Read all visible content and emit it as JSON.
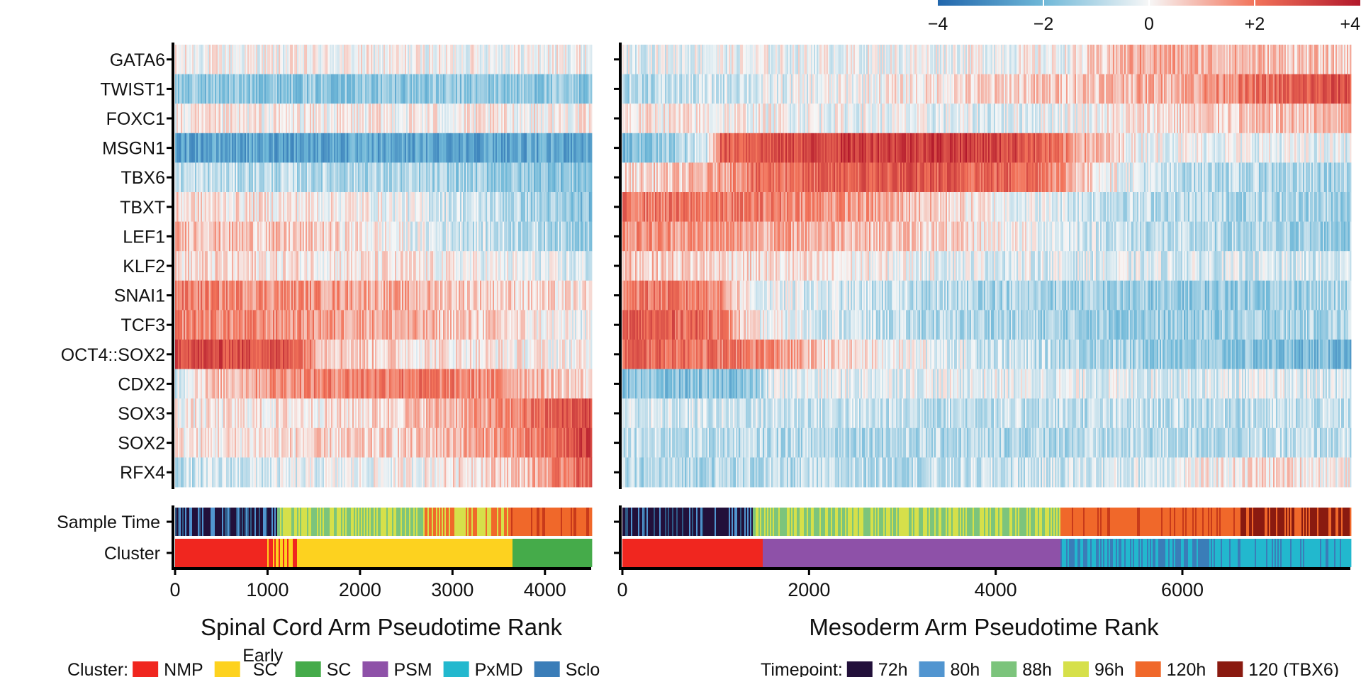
{
  "chart_data": [
    {
      "type": "heatmap",
      "title": "",
      "xlabel": "Spinal Cord Arm Pseudotime Rank",
      "xlim": [
        0,
        4500
      ],
      "xticks": [
        0,
        1000,
        2000,
        3000,
        4000
      ],
      "xtick_labels": [
        "0",
        "1000",
        "2000",
        "3000",
        "4000"
      ],
      "genes": [
        "GATA6",
        "TWIST1",
        "FOXC1",
        "MSGN1",
        "TBX6",
        "TBXT",
        "LEF1",
        "KLF2",
        "SNAI1",
        "TCF3",
        "OCT4::SOX2",
        "CDX2",
        "SOX3",
        "SOX2",
        "RFX4"
      ],
      "profiles": [
        {
          "gene": "GATA6",
          "x": [
            0,
            4500
          ],
          "values": [
            0,
            0
          ]
        },
        {
          "gene": "TWIST1",
          "x": [
            0,
            4500
          ],
          "values": [
            -1.5,
            -1.5
          ]
        },
        {
          "gene": "FOXC1",
          "x": [
            0,
            4500
          ],
          "values": [
            0.1,
            0.1
          ]
        },
        {
          "gene": "MSGN1",
          "x": [
            0,
            4500
          ],
          "values": [
            -2.5,
            -2.4
          ]
        },
        {
          "gene": "TBX6",
          "x": [
            0,
            2000,
            4500
          ],
          "values": [
            -0.8,
            -1.0,
            -1.6
          ]
        },
        {
          "gene": "TBXT",
          "x": [
            0,
            2000,
            3500,
            4500
          ],
          "values": [
            0.4,
            0.1,
            -0.8,
            -1.7
          ]
        },
        {
          "gene": "LEF1",
          "x": [
            0,
            1500,
            3000,
            4500
          ],
          "values": [
            1.0,
            0.6,
            -0.5,
            -1.2
          ]
        },
        {
          "gene": "KLF2",
          "x": [
            0,
            2500,
            4500
          ],
          "values": [
            0.4,
            0.2,
            -0.5
          ]
        },
        {
          "gene": "SNAI1",
          "x": [
            0,
            1500,
            3000,
            4500
          ],
          "values": [
            1.8,
            1.5,
            0.8,
            0.2
          ]
        },
        {
          "gene": "TCF3",
          "x": [
            0,
            2000,
            3500,
            4500
          ],
          "values": [
            1.8,
            1.3,
            0.5,
            -0.3
          ]
        },
        {
          "gene": "OCT4::SOX2",
          "x": [
            0,
            1300,
            1600,
            2500,
            4500
          ],
          "values": [
            3.0,
            2.6,
            1.0,
            0.4,
            0.0
          ]
        },
        {
          "gene": "CDX2",
          "x": [
            0,
            200,
            1100,
            2500,
            3500,
            4500
          ],
          "values": [
            -0.5,
            0.4,
            1.6,
            2.0,
            1.5,
            0.4
          ]
        },
        {
          "gene": "SOX3",
          "x": [
            0,
            2000,
            3500,
            4500
          ],
          "values": [
            0.1,
            0.4,
            1.4,
            3.0
          ]
        },
        {
          "gene": "SOX2",
          "x": [
            0,
            2500,
            4000,
            4500
          ],
          "values": [
            0.2,
            0.6,
            1.8,
            3.2
          ]
        },
        {
          "gene": "RFX4",
          "x": [
            0,
            2500,
            3800,
            4500
          ],
          "values": [
            -0.8,
            0.0,
            0.8,
            2.6
          ]
        }
      ],
      "annotation_rows": [
        "Sample Time",
        "Cluster"
      ],
      "sample_time_segments": [
        {
          "from": 0,
          "to": 1100,
          "timepoint": "72h/80h"
        },
        {
          "from": 1100,
          "to": 2700,
          "timepoint": "88h/96h"
        },
        {
          "from": 2700,
          "to": 3600,
          "timepoint": "96h/120h"
        },
        {
          "from": 3600,
          "to": 4500,
          "timepoint": "120h"
        }
      ],
      "cluster_segments": [
        {
          "from": 0,
          "to": 1000,
          "cluster": "NMP"
        },
        {
          "from": 1000,
          "to": 1350,
          "cluster": "NMP/Early SC"
        },
        {
          "from": 1350,
          "to": 3650,
          "cluster": "Early SC"
        },
        {
          "from": 3650,
          "to": 4500,
          "cluster": "SC"
        }
      ]
    },
    {
      "type": "heatmap",
      "title": "",
      "xlabel": "Mesoderm Arm Pseudotime Rank",
      "xlim": [
        0,
        7800
      ],
      "xticks": [
        0,
        2000,
        4000,
        6000
      ],
      "xtick_labels": [
        "0",
        "2000",
        "4000",
        "6000"
      ],
      "genes": [
        "GATA6",
        "TWIST1",
        "FOXC1",
        "MSGN1",
        "TBX6",
        "TBXT",
        "LEF1",
        "KLF2",
        "SNAI1",
        "TCF3",
        "OCT4::SOX2",
        "CDX2",
        "SOX3",
        "SOX2",
        "RFX4"
      ],
      "profiles": [
        {
          "gene": "GATA6",
          "x": [
            0,
            4800,
            5500,
            6500,
            7800
          ],
          "values": [
            -0.2,
            0.0,
            1.2,
            1.0,
            0.6
          ]
        },
        {
          "gene": "TWIST1",
          "x": [
            0,
            3000,
            6000,
            7000,
            7800
          ],
          "values": [
            -1.0,
            0.2,
            1.2,
            2.2,
            2.8
          ]
        },
        {
          "gene": "FOXC1",
          "x": [
            0,
            4000,
            6000,
            7800
          ],
          "values": [
            0.3,
            -0.4,
            0.5,
            1.0
          ]
        },
        {
          "gene": "MSGN1",
          "x": [
            0,
            400,
            900,
            1050,
            2500,
            3500,
            4300,
            4800,
            5500,
            7800
          ],
          "values": [
            -2.0,
            -1.5,
            -0.5,
            2.4,
            3.2,
            3.3,
            2.8,
            1.5,
            0.0,
            -0.3
          ]
        },
        {
          "gene": "TBX6",
          "x": [
            0,
            800,
            1400,
            3000,
            4500,
            5000,
            5800,
            7800
          ],
          "values": [
            0.4,
            0.8,
            2.0,
            2.6,
            2.2,
            0.5,
            -0.8,
            -1.2
          ]
        },
        {
          "gene": "TBXT",
          "x": [
            0,
            1800,
            3000,
            4000,
            5500,
            7800
          ],
          "values": [
            2.0,
            1.8,
            1.0,
            0.0,
            -0.8,
            -1.2
          ]
        },
        {
          "gene": "LEF1",
          "x": [
            0,
            2500,
            4000,
            5500,
            7800
          ],
          "values": [
            1.6,
            1.0,
            0.2,
            -0.8,
            -1.4
          ]
        },
        {
          "gene": "KLF2",
          "x": [
            0,
            2000,
            4000,
            7800
          ],
          "values": [
            0.8,
            0.2,
            -0.3,
            -0.6
          ]
        },
        {
          "gene": "SNAI1",
          "x": [
            0,
            1000,
            1400,
            3000,
            6000,
            7800
          ],
          "values": [
            2.0,
            1.8,
            -0.2,
            -0.8,
            -1.5,
            -1.1
          ]
        },
        {
          "gene": "TCF3",
          "x": [
            0,
            1000,
            1400,
            3000,
            6000,
            7800
          ],
          "values": [
            2.5,
            2.2,
            0.0,
            -0.9,
            -1.4,
            -1.0
          ]
        },
        {
          "gene": "OCT4::SOX2",
          "x": [
            0,
            1500,
            2200,
            4000,
            6000,
            7800
          ],
          "values": [
            2.4,
            1.8,
            0.5,
            -0.6,
            -1.4,
            -2.0
          ]
        },
        {
          "gene": "CDX2",
          "x": [
            0,
            1400,
            1600,
            3000,
            7800
          ],
          "values": [
            -1.8,
            -1.6,
            -0.3,
            -0.2,
            -0.4
          ]
        },
        {
          "gene": "SOX3",
          "x": [
            0,
            4000,
            7800
          ],
          "values": [
            -0.5,
            -0.8,
            -0.8
          ]
        },
        {
          "gene": "SOX2",
          "x": [
            0,
            4000,
            7800
          ],
          "values": [
            -0.8,
            -1.0,
            -0.8
          ]
        },
        {
          "gene": "RFX4",
          "x": [
            0,
            3500,
            5500,
            7000,
            7800
          ],
          "values": [
            -1.0,
            -0.8,
            -0.4,
            0.5,
            0.0
          ]
        }
      ],
      "annotation_rows": [
        "Sample Time",
        "Cluster"
      ],
      "sample_time_segments": [
        {
          "from": 0,
          "to": 1400,
          "timepoint": "72h/80h"
        },
        {
          "from": 1400,
          "to": 4700,
          "timepoint": "88h/96h"
        },
        {
          "from": 4700,
          "to": 6600,
          "timepoint": "120h"
        },
        {
          "from": 6600,
          "to": 7800,
          "timepoint": "120 (TBX6)"
        }
      ],
      "cluster_segments": [
        {
          "from": 0,
          "to": 1500,
          "cluster": "NMP"
        },
        {
          "from": 1500,
          "to": 4700,
          "cluster": "PSM"
        },
        {
          "from": 4700,
          "to": 6300,
          "cluster": "PxMD/Sclo"
        },
        {
          "from": 6300,
          "to": 7800,
          "cluster": "PxMD"
        }
      ]
    }
  ],
  "colorbar": {
    "range": [
      -4,
      4
    ],
    "tick_labels": [
      "−4",
      "−2",
      "0",
      "+2",
      "+4"
    ],
    "colors": {
      "neg": "#2166ac",
      "mid": "#f7f7f7",
      "pos": "#b2182b"
    }
  },
  "legends": {
    "cluster": {
      "title": "Cluster:",
      "items": [
        {
          "label": "NMP",
          "color": "#f0261f"
        },
        {
          "label": "Early",
          "label2": "SC",
          "color": "#fdd21f"
        },
        {
          "label": "SC",
          "color": "#45ab4a"
        },
        {
          "label": "PSM",
          "color": "#8e51a8"
        },
        {
          "label": "PxMD",
          "color": "#22b8ce"
        },
        {
          "label": "Sclo",
          "color": "#3a7db8"
        }
      ]
    },
    "timepoint": {
      "title": "Timepoint:",
      "items": [
        {
          "label": "72h",
          "color": "#22103a"
        },
        {
          "label": "80h",
          "color": "#5195d0"
        },
        {
          "label": "88h",
          "color": "#7cc47c"
        },
        {
          "label": "96h",
          "color": "#d6e04a"
        },
        {
          "label": "120h",
          "color": "#f0682a"
        },
        {
          "label": "120 (TBX6)",
          "color": "#8a1a10"
        }
      ]
    }
  }
}
